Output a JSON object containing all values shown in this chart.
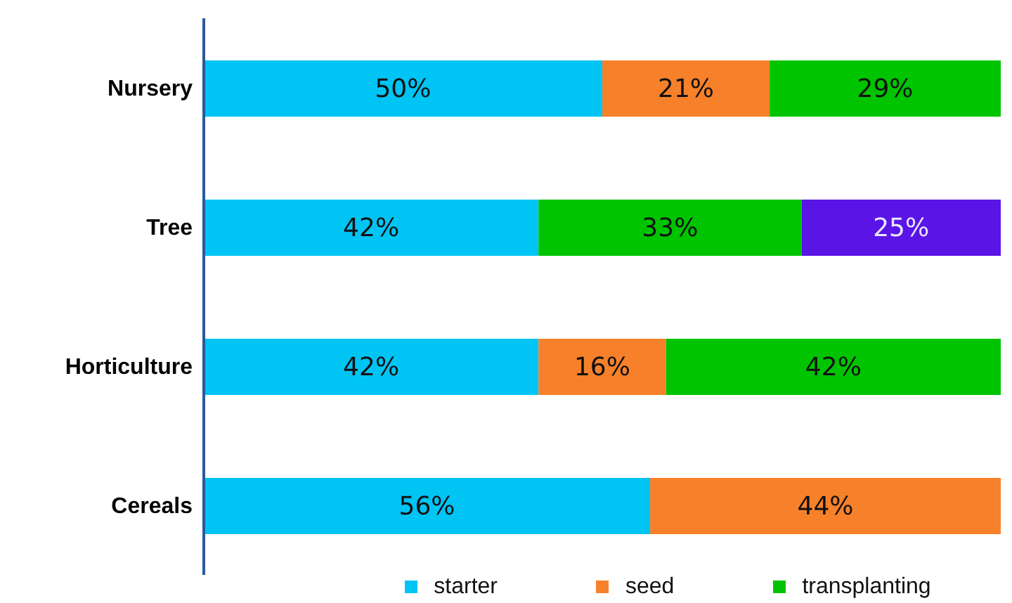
{
  "chart_data": {
    "type": "bar",
    "orientation": "horizontal",
    "stacked": true,
    "categories": [
      "Nursery",
      "Tree",
      "Horticulture",
      "Cereals"
    ],
    "xlim": [
      0,
      100
    ],
    "tick_labels": "y",
    "legend": "bottom",
    "grid": false,
    "series": [
      {
        "name": "starter",
        "color": "#00c4f4",
        "values": [
          50,
          42,
          42,
          56
        ],
        "value_labels": [
          "50%",
          "42%",
          "42%",
          "56%"
        ]
      },
      {
        "name": "seed",
        "color": "#f7812a",
        "values": [
          21,
          null,
          16,
          44
        ],
        "value_labels": [
          "21%",
          null,
          "16%",
          "44%"
        ]
      },
      {
        "name": "transplanting",
        "color": "#00c400",
        "values": [
          29,
          33,
          42,
          null
        ],
        "value_labels": [
          "29%",
          "33%",
          "42%",
          null
        ]
      },
      {
        "color": "#5a14e6",
        "values": [
          null,
          25,
          null,
          null
        ],
        "value_labels": [
          null,
          "25%",
          null,
          null
        ]
      }
    ]
  }
}
